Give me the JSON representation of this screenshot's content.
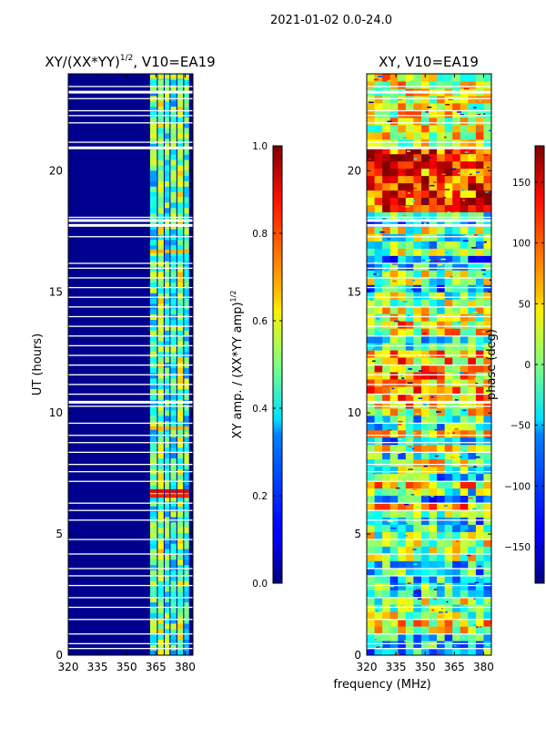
{
  "suptitle": "2021-01-02 0.0-24.0",
  "xlabel": "frequency (MHz)",
  "chart_data": [
    {
      "type": "heatmap",
      "title_main": "XY/(XX*YY)",
      "title_sup": "1/2",
      "title_tail": ", V10=EA19",
      "ylabel": "UT (hours)",
      "xlim": [
        320,
        384
      ],
      "ylim": [
        0,
        24
      ],
      "xticks": [
        320,
        335,
        350,
        365,
        380
      ],
      "yticks": [
        0,
        5,
        10,
        15,
        20
      ],
      "colorbar": {
        "label_main": "XY amp. / (XX*YY amp)",
        "label_sup": "1/2",
        "range": [
          0.0,
          1.0
        ],
        "ticks": [
          "0.0",
          "0.2",
          "0.4",
          "0.6",
          "0.8",
          "1.0"
        ],
        "colormap": "jet"
      }
    },
    {
      "type": "heatmap",
      "title": "XY, V10=EA19",
      "xlim": [
        320,
        384
      ],
      "ylim": [
        0,
        24
      ],
      "xticks": [
        320,
        335,
        350,
        365,
        380
      ],
      "yticks": [
        0,
        5,
        10,
        15,
        20
      ],
      "colorbar": {
        "label": "phase (deg)",
        "range": [
          -180,
          180
        ],
        "ticks": [
          "−150",
          "−100",
          "−50",
          "0",
          "50",
          "100",
          "150"
        ],
        "colormap": "jet"
      }
    }
  ]
}
